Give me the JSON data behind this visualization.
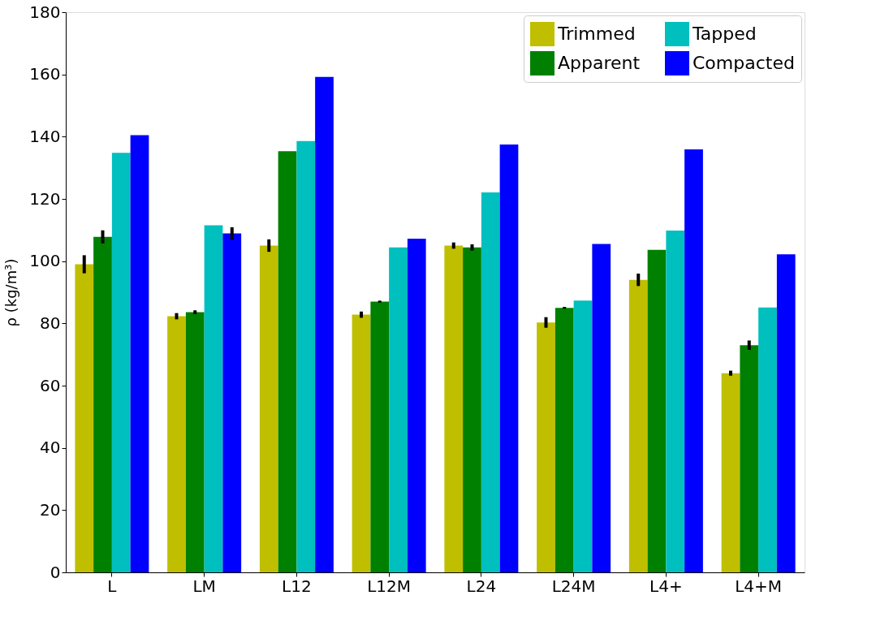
{
  "chart_data": {
    "type": "bar",
    "ylabel": "ρ  (kg/m³)",
    "categories": [
      "L",
      "LM",
      "L12",
      "L12M",
      "L24",
      "L24M",
      "L4+",
      "L4+M"
    ],
    "series": [
      {
        "name": "Trimmed",
        "color": "#bfbf00",
        "values": [
          99.0,
          82.3,
          105.0,
          82.8,
          105.0,
          80.3,
          94.0,
          64.0
        ],
        "errors": [
          2.9,
          1.0,
          2.0,
          1.0,
          1.0,
          1.7,
          2.0,
          0.8
        ]
      },
      {
        "name": "Apparent",
        "color": "#008000",
        "values": [
          107.8,
          83.6,
          135.3,
          87.0,
          104.4,
          85.0,
          103.6,
          73.0
        ],
        "errors": [
          2.1,
          0.6,
          null,
          0.3,
          1.0,
          0.3,
          null,
          1.5
        ]
      },
      {
        "name": "Tapped",
        "color": "#00bfbf",
        "values": [
          134.8,
          111.5,
          138.6,
          104.4,
          122.1,
          87.3,
          109.8,
          85.1
        ]
      },
      {
        "name": "Compacted",
        "color": "#0000ff",
        "values": [
          140.5,
          108.9,
          159.2,
          107.2,
          137.5,
          105.5,
          135.9,
          102.2
        ],
        "errors": [
          null,
          2.0,
          null,
          null,
          null,
          null,
          null,
          null
        ]
      }
    ],
    "ylim": [
      0,
      180
    ],
    "yticks": [
      0,
      20,
      40,
      60,
      80,
      100,
      120,
      140,
      160,
      180
    ],
    "grid": false,
    "legend": "top right"
  }
}
